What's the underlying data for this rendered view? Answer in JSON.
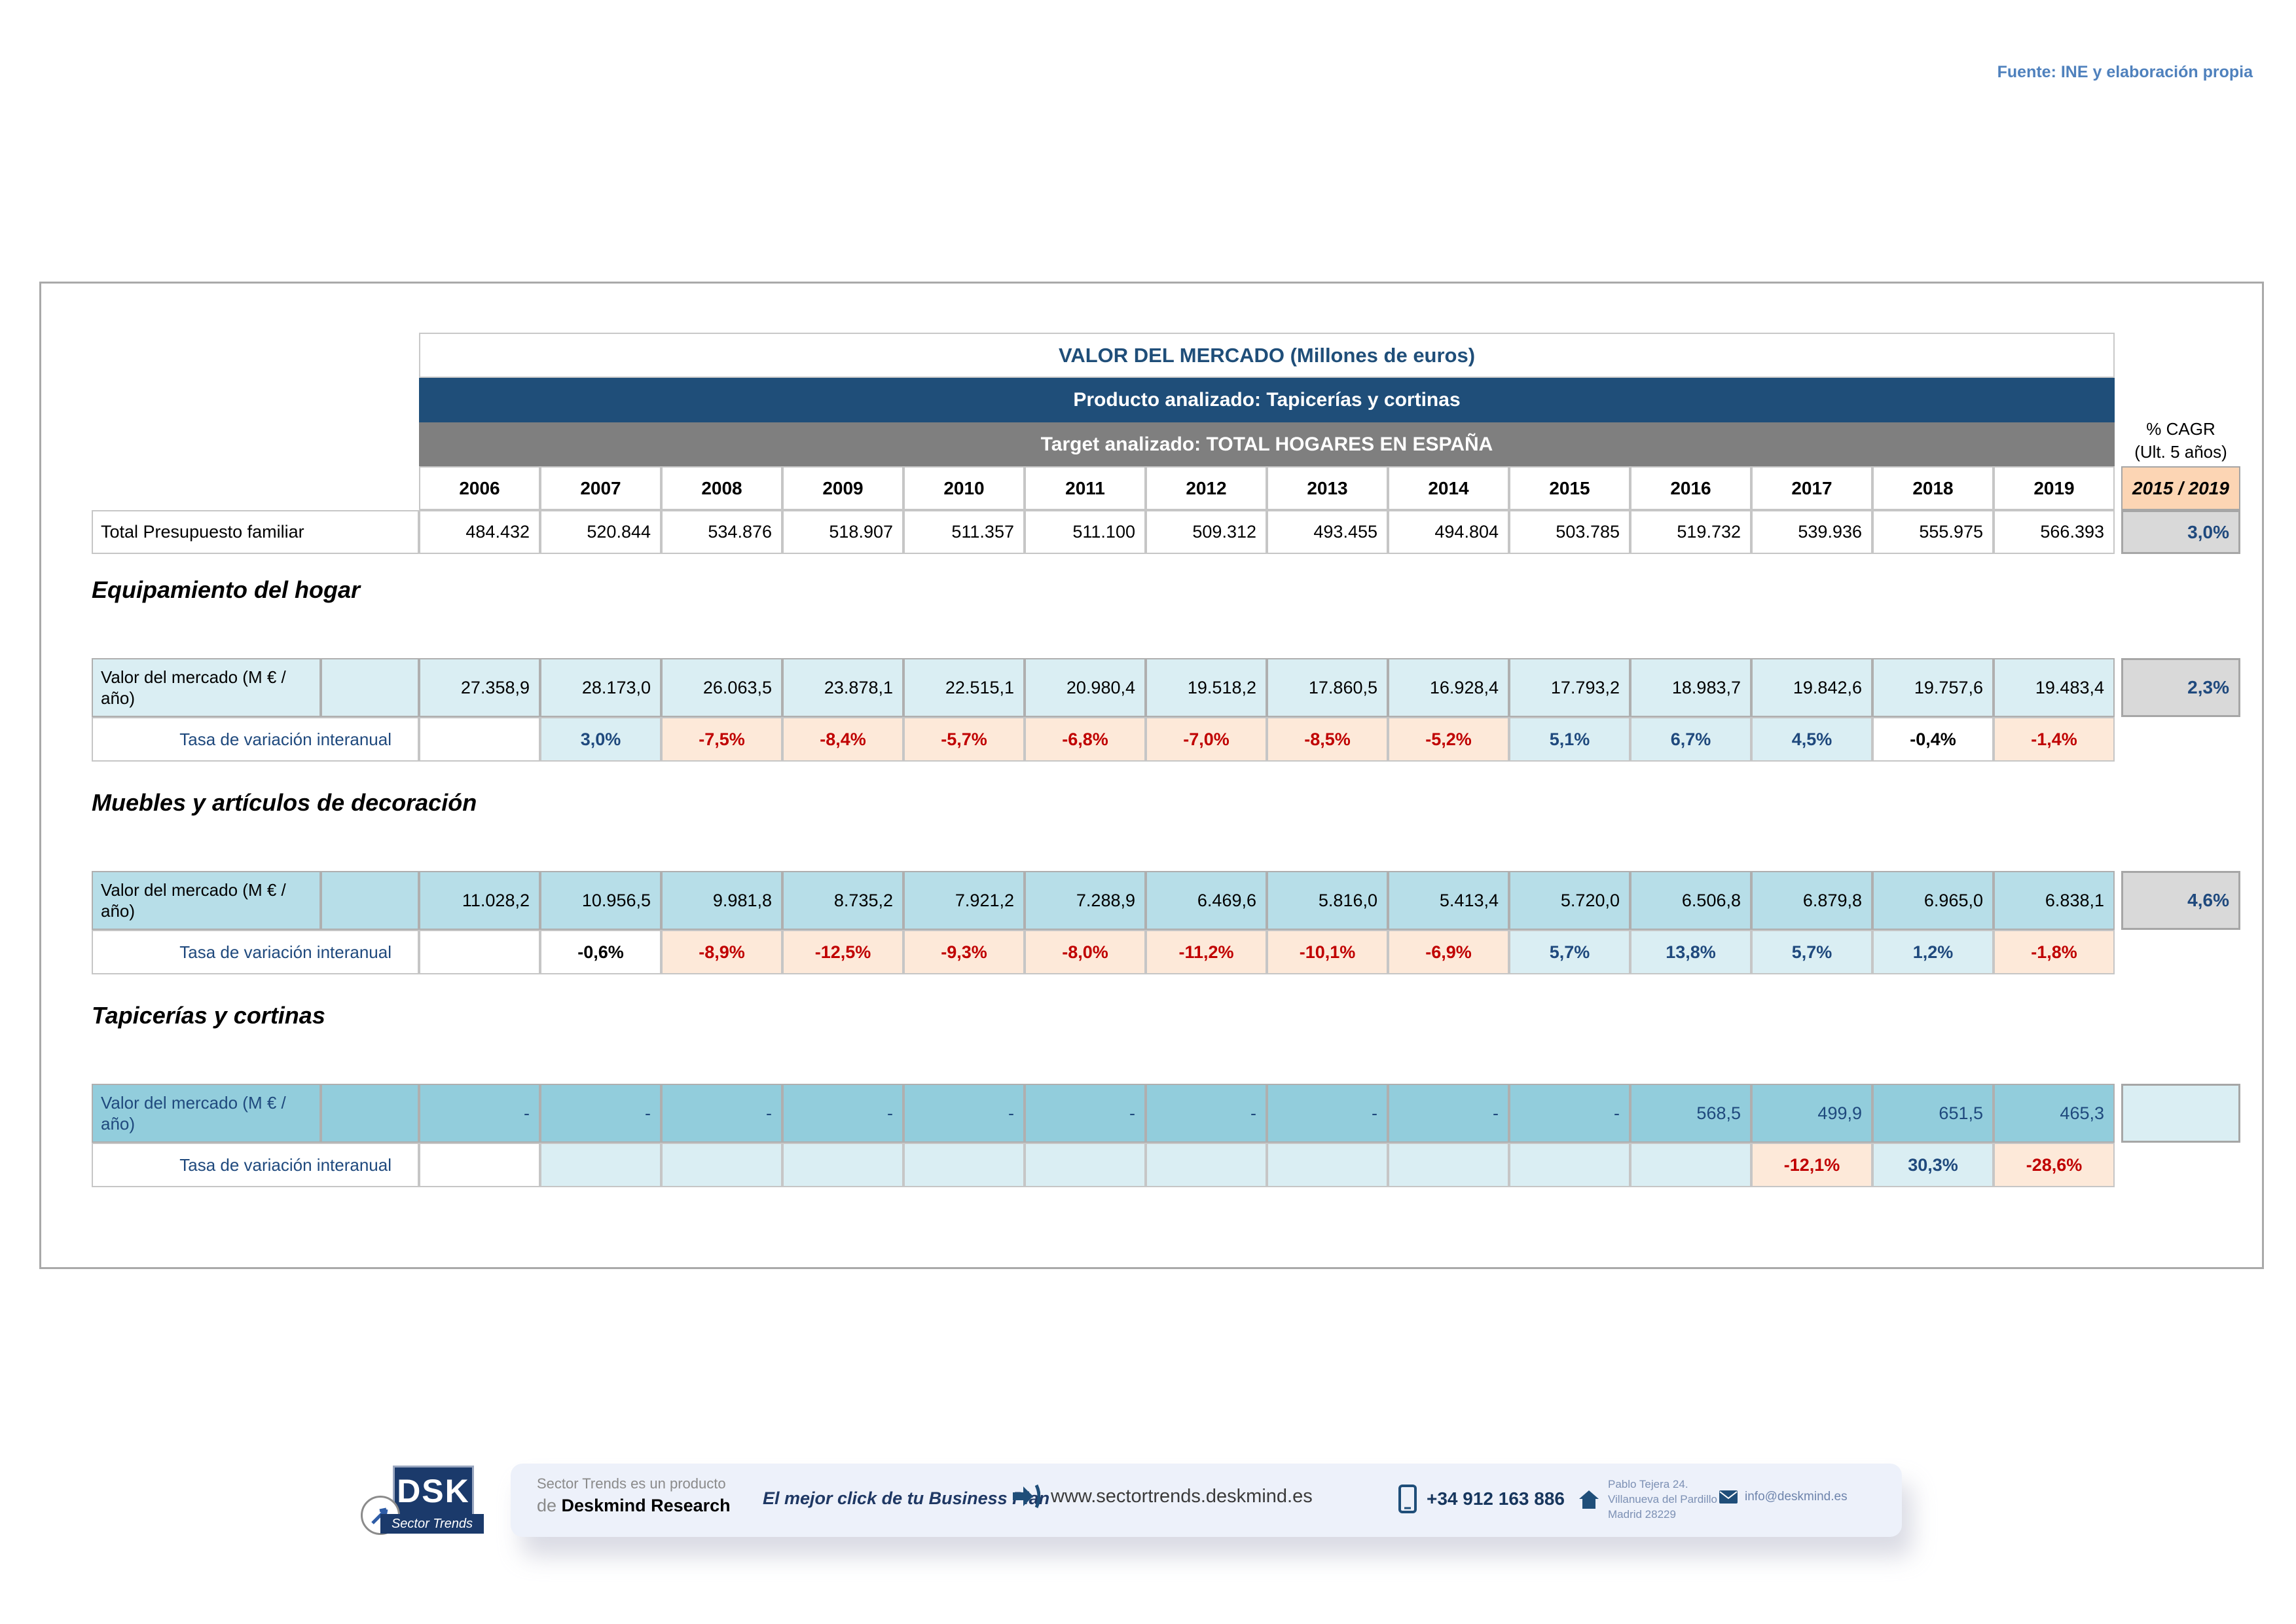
{
  "fuente": "Fuente: INE y elaboración propia",
  "header": {
    "title": "VALOR DEL MERCADO (Millones de euros)",
    "product": "Producto analizado: Tapicerías y cortinas",
    "target": "Target analizado: TOTAL HOGARES EN ESPAÑA",
    "cagr_line1": "% CAGR",
    "cagr_line2": "(Ult. 5 años)",
    "cagr_period": "2015 / 2019"
  },
  "labels": {
    "market_value_row": "Valor del mercado (M € / año)",
    "yoy_row": "Tasa de variación interanual"
  },
  "table": {
    "years": [
      "2006",
      "2007",
      "2008",
      "2009",
      "2010",
      "2011",
      "2012",
      "2013",
      "2014",
      "2015",
      "2016",
      "2017",
      "2018",
      "2019"
    ],
    "total": {
      "label": "Total Presupuesto familiar",
      "values": [
        "484.432",
        "520.844",
        "534.876",
        "518.907",
        "511.357",
        "511.100",
        "509.312",
        "493.455",
        "494.804",
        "503.785",
        "519.732",
        "539.936",
        "555.975",
        "566.393"
      ],
      "cagr": "3,0%"
    },
    "sections": [
      {
        "title": "Equipamiento del hogar",
        "values": [
          "27.358,9",
          "28.173,0",
          "26.063,5",
          "23.878,1",
          "22.515,1",
          "20.980,4",
          "19.518,2",
          "17.860,5",
          "16.928,4",
          "17.793,2",
          "18.983,7",
          "19.842,6",
          "19.757,6",
          "19.483,4"
        ],
        "cagr": "2,3%",
        "yoy": [
          {
            "v": "",
            "s": "blank"
          },
          {
            "v": "3,0%",
            "s": "pos"
          },
          {
            "v": "-7,5%",
            "s": "neg"
          },
          {
            "v": "-8,4%",
            "s": "neg"
          },
          {
            "v": "-5,7%",
            "s": "neg"
          },
          {
            "v": "-6,8%",
            "s": "neg"
          },
          {
            "v": "-7,0%",
            "s": "neg"
          },
          {
            "v": "-8,5%",
            "s": "neg"
          },
          {
            "v": "-5,2%",
            "s": "neg"
          },
          {
            "v": "5,1%",
            "s": "pos"
          },
          {
            "v": "6,7%",
            "s": "pos"
          },
          {
            "v": "4,5%",
            "s": "pos"
          },
          {
            "v": "-0,4%",
            "s": "neutral"
          },
          {
            "v": "-1,4%",
            "s": "neg"
          }
        ]
      },
      {
        "title": "Muebles y artículos de decoración",
        "values": [
          "11.028,2",
          "10.956,5",
          "9.981,8",
          "8.735,2",
          "7.921,2",
          "7.288,9",
          "6.469,6",
          "5.816,0",
          "5.413,4",
          "5.720,0",
          "6.506,8",
          "6.879,8",
          "6.965,0",
          "6.838,1"
        ],
        "cagr": "4,6%",
        "yoy": [
          {
            "v": "",
            "s": "blank"
          },
          {
            "v": "-0,6%",
            "s": "neutral"
          },
          {
            "v": "-8,9%",
            "s": "neg"
          },
          {
            "v": "-12,5%",
            "s": "neg"
          },
          {
            "v": "-9,3%",
            "s": "neg"
          },
          {
            "v": "-8,0%",
            "s": "neg"
          },
          {
            "v": "-11,2%",
            "s": "neg"
          },
          {
            "v": "-10,1%",
            "s": "neg"
          },
          {
            "v": "-6,9%",
            "s": "neg"
          },
          {
            "v": "5,7%",
            "s": "pos"
          },
          {
            "v": "13,8%",
            "s": "pos"
          },
          {
            "v": "5,7%",
            "s": "pos"
          },
          {
            "v": "1,2%",
            "s": "pos"
          },
          {
            "v": "-1,8%",
            "s": "neg"
          }
        ]
      },
      {
        "title": "Tapicerías y cortinas",
        "values": [
          "-",
          "-",
          "-",
          "-",
          "-",
          "-",
          "-",
          "-",
          "-",
          "-",
          "568,5",
          "499,9",
          "651,5",
          "465,3"
        ],
        "cagr": "",
        "yoy": [
          {
            "v": "",
            "s": "blank"
          },
          {
            "v": "",
            "s": "blankblue"
          },
          {
            "v": "",
            "s": "blankblue"
          },
          {
            "v": "",
            "s": "blankblue"
          },
          {
            "v": "",
            "s": "blankblue"
          },
          {
            "v": "",
            "s": "blankblue"
          },
          {
            "v": "",
            "s": "blankblue"
          },
          {
            "v": "",
            "s": "blankblue"
          },
          {
            "v": "",
            "s": "blankblue"
          },
          {
            "v": "",
            "s": "blankblue"
          },
          {
            "v": "",
            "s": "blankblue"
          },
          {
            "v": "-12,1%",
            "s": "neg"
          },
          {
            "v": "30,3%",
            "s": "pos"
          },
          {
            "v": "-28,6%",
            "s": "neg"
          }
        ]
      }
    ]
  },
  "footer": {
    "logo": "DSK",
    "logo_sub": "Sector Trends",
    "product_line": "Sector Trends es un producto",
    "by_prefix": "de ",
    "company": "Deskmind Research",
    "tagline": "El mejor click de tu Business Plan",
    "website": "www.sectortrends.deskmind.es",
    "phone": "+34 912 163 886",
    "address1": "Pablo Tejera 24.",
    "address2": "Villanueva del Pardillo",
    "address3": "Madrid 28229",
    "email": "info@deskmind.es"
  }
}
